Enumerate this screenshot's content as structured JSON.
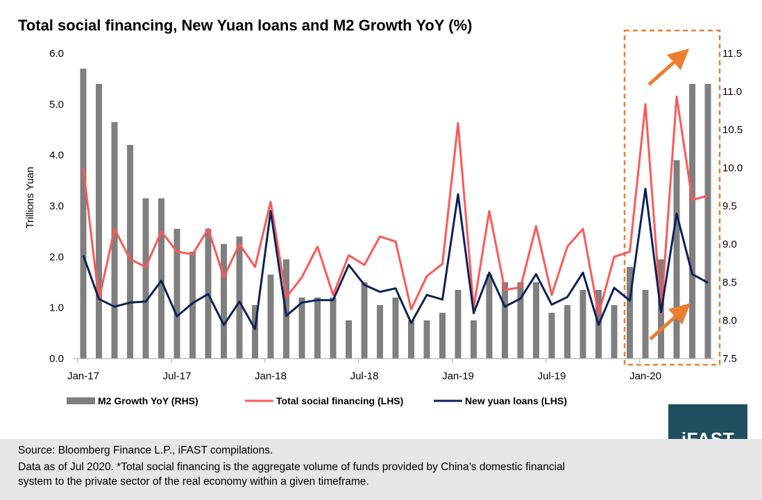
{
  "title": "Total social financing, New Yuan loans and M2 Growth YoY (%)",
  "footer": {
    "source": "Source: Bloomberg Finance L.P., iFAST compilations.",
    "note_line1": "Data as of Jul 2020. *Total social financing is the aggregate volume of funds provided by China’s domestic financial",
    "note_line2": "system to the private sector of the real economy within a given timeframe."
  },
  "logo": "iFAST",
  "colors": {
    "bars": "#7f7f7f",
    "tsf": "#ff5757",
    "loans": "#0c2157",
    "highlight": "#ed7d31"
  },
  "chart_data": {
    "type": "bar+line",
    "ylabel": "Trillions Yuan",
    "ylim_left": [
      0,
      6
    ],
    "ylim_right": [
      7.5,
      11.5
    ],
    "left_ticks": [
      "0.0",
      "1.0",
      "2.0",
      "3.0",
      "4.0",
      "5.0",
      "6.0"
    ],
    "right_ticks": [
      "7.5",
      "8.0",
      "8.5",
      "9.0",
      "9.5",
      "10.0",
      "10.5",
      "11.0",
      "11.5"
    ],
    "x_tick_labels": [
      "Jan-17",
      "Jul-17",
      "Jan-18",
      "Jul-18",
      "Jan-19",
      "Jul-19",
      "Jan-20"
    ],
    "grid": false,
    "legend_position": "bottom",
    "series": [
      {
        "name": "M2 Growth YoY (RHS)",
        "type": "bar",
        "axis": "right",
        "values": [
          11.3,
          11.1,
          10.6,
          10.3,
          9.6,
          9.6,
          9.2,
          8.9,
          9.2,
          9.0,
          9.1,
          8.2,
          8.6,
          8.8,
          8.3,
          8.3,
          8.3,
          8.0,
          8.5,
          8.2,
          8.3,
          8.0,
          8.0,
          8.1,
          8.4,
          8.0,
          8.6,
          8.5,
          8.5,
          8.5,
          8.1,
          8.2,
          8.4,
          8.4,
          8.2,
          8.7,
          8.4,
          8.8,
          10.1,
          11.1,
          11.1
        ]
      },
      {
        "name": "Total social financing (LHS)",
        "type": "line",
        "axis": "left",
        "values": [
          3.75,
          1.15,
          2.55,
          1.95,
          1.8,
          2.5,
          2.1,
          2.05,
          2.55,
          1.6,
          2.25,
          1.8,
          3.08,
          1.2,
          1.6,
          2.2,
          1.25,
          2.03,
          1.84,
          2.4,
          2.3,
          0.97,
          1.62,
          1.86,
          4.63,
          1.0,
          2.9,
          1.35,
          1.4,
          2.6,
          1.25,
          2.2,
          2.55,
          0.87,
          2.0,
          2.1,
          5.0,
          0.88,
          5.15,
          3.12,
          3.2
        ]
      },
      {
        "name": "New yuan loans (LHS)",
        "type": "line",
        "axis": "left",
        "values": [
          2.03,
          1.17,
          1.02,
          1.1,
          1.12,
          1.53,
          0.83,
          1.09,
          1.27,
          0.66,
          1.12,
          0.58,
          2.9,
          0.84,
          1.1,
          1.15,
          1.15,
          1.84,
          1.45,
          1.31,
          1.38,
          0.7,
          1.25,
          1.16,
          3.23,
          0.89,
          1.69,
          1.02,
          1.18,
          1.66,
          1.06,
          1.21,
          1.69,
          0.66,
          1.39,
          1.14,
          3.34,
          0.91,
          2.85,
          1.66,
          1.49
        ]
      }
    ],
    "highlight_region": {
      "from_index": 36,
      "to_index": 40
    }
  }
}
